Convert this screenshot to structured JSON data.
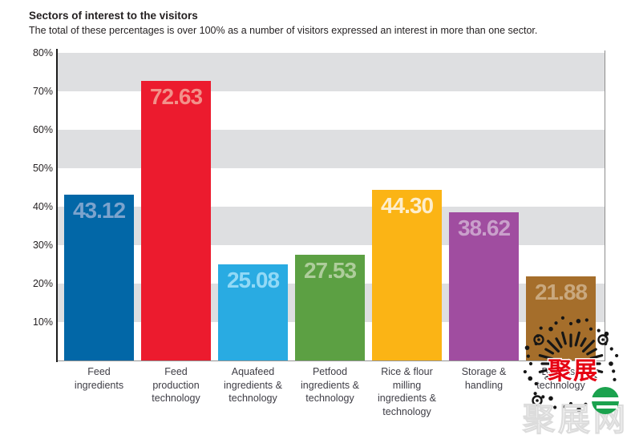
{
  "header": {
    "title": "Sectors of interest to the visitors",
    "subtitle": "The total of these percentages is over 100% as a number of visitors expressed an interest in more than one sector."
  },
  "chart_data": {
    "type": "bar",
    "title": "Sectors of interest to the visitors",
    "xlabel": "",
    "ylabel": "",
    "ylim": [
      0,
      80
    ],
    "y_ticks": [
      "10%",
      "20%",
      "30%",
      "40%",
      "50%",
      "60%",
      "70%",
      "80%"
    ],
    "grid": "alternating horizontal gray bands every 10%",
    "legend": "none",
    "categories": [
      "Feed ingredients",
      "Feed production technology",
      "Aquafeed ingredients & technology",
      "Petfood ingredients & technology",
      "Rice & flour milling ingredients & technology",
      "Storage & handling",
      "Biomass technology"
    ],
    "values": [
      43.12,
      72.63,
      25.08,
      27.53,
      44.3,
      38.62,
      21.88
    ],
    "band_color": "#dedfe1",
    "bars": [
      {
        "label_lines": "Feed\ningredients",
        "value": 43.12,
        "color": "#0267a7",
        "value_color": "#7ba3cd"
      },
      {
        "label_lines": "Feed\nproduction\ntechnology",
        "value": 72.63,
        "color": "#ec1b2e",
        "value_color": "#f2918a"
      },
      {
        "label_lines": "Aquafeed\ningredients &\ntechnology",
        "value": 25.08,
        "color": "#29abe2",
        "value_color": "#92d9f6"
      },
      {
        "label_lines": "Petfood\ningredients &\ntechnology",
        "value": 27.53,
        "color": "#5ca043",
        "value_color": "#aecd9b"
      },
      {
        "label_lines": "Rice & flour\nmilling\ningredients &\ntechnology",
        "value": 44.3,
        "color": "#fbb415",
        "value_color": "#fdeecd"
      },
      {
        "label_lines": "Storage &\nhandling",
        "value": 38.62,
        "color": "#a04da0",
        "value_color": "#c9a0cb"
      },
      {
        "label_lines": "Biomass\ntechnology",
        "value": 21.88,
        "color": "#a56e2b",
        "value_color": "#c9a87e"
      }
    ]
  },
  "watermark": {
    "brand_text": "聚展",
    "ghost_text": "聚展网",
    "accent_color": "#e60012",
    "logo_color": "#1ba24e"
  }
}
